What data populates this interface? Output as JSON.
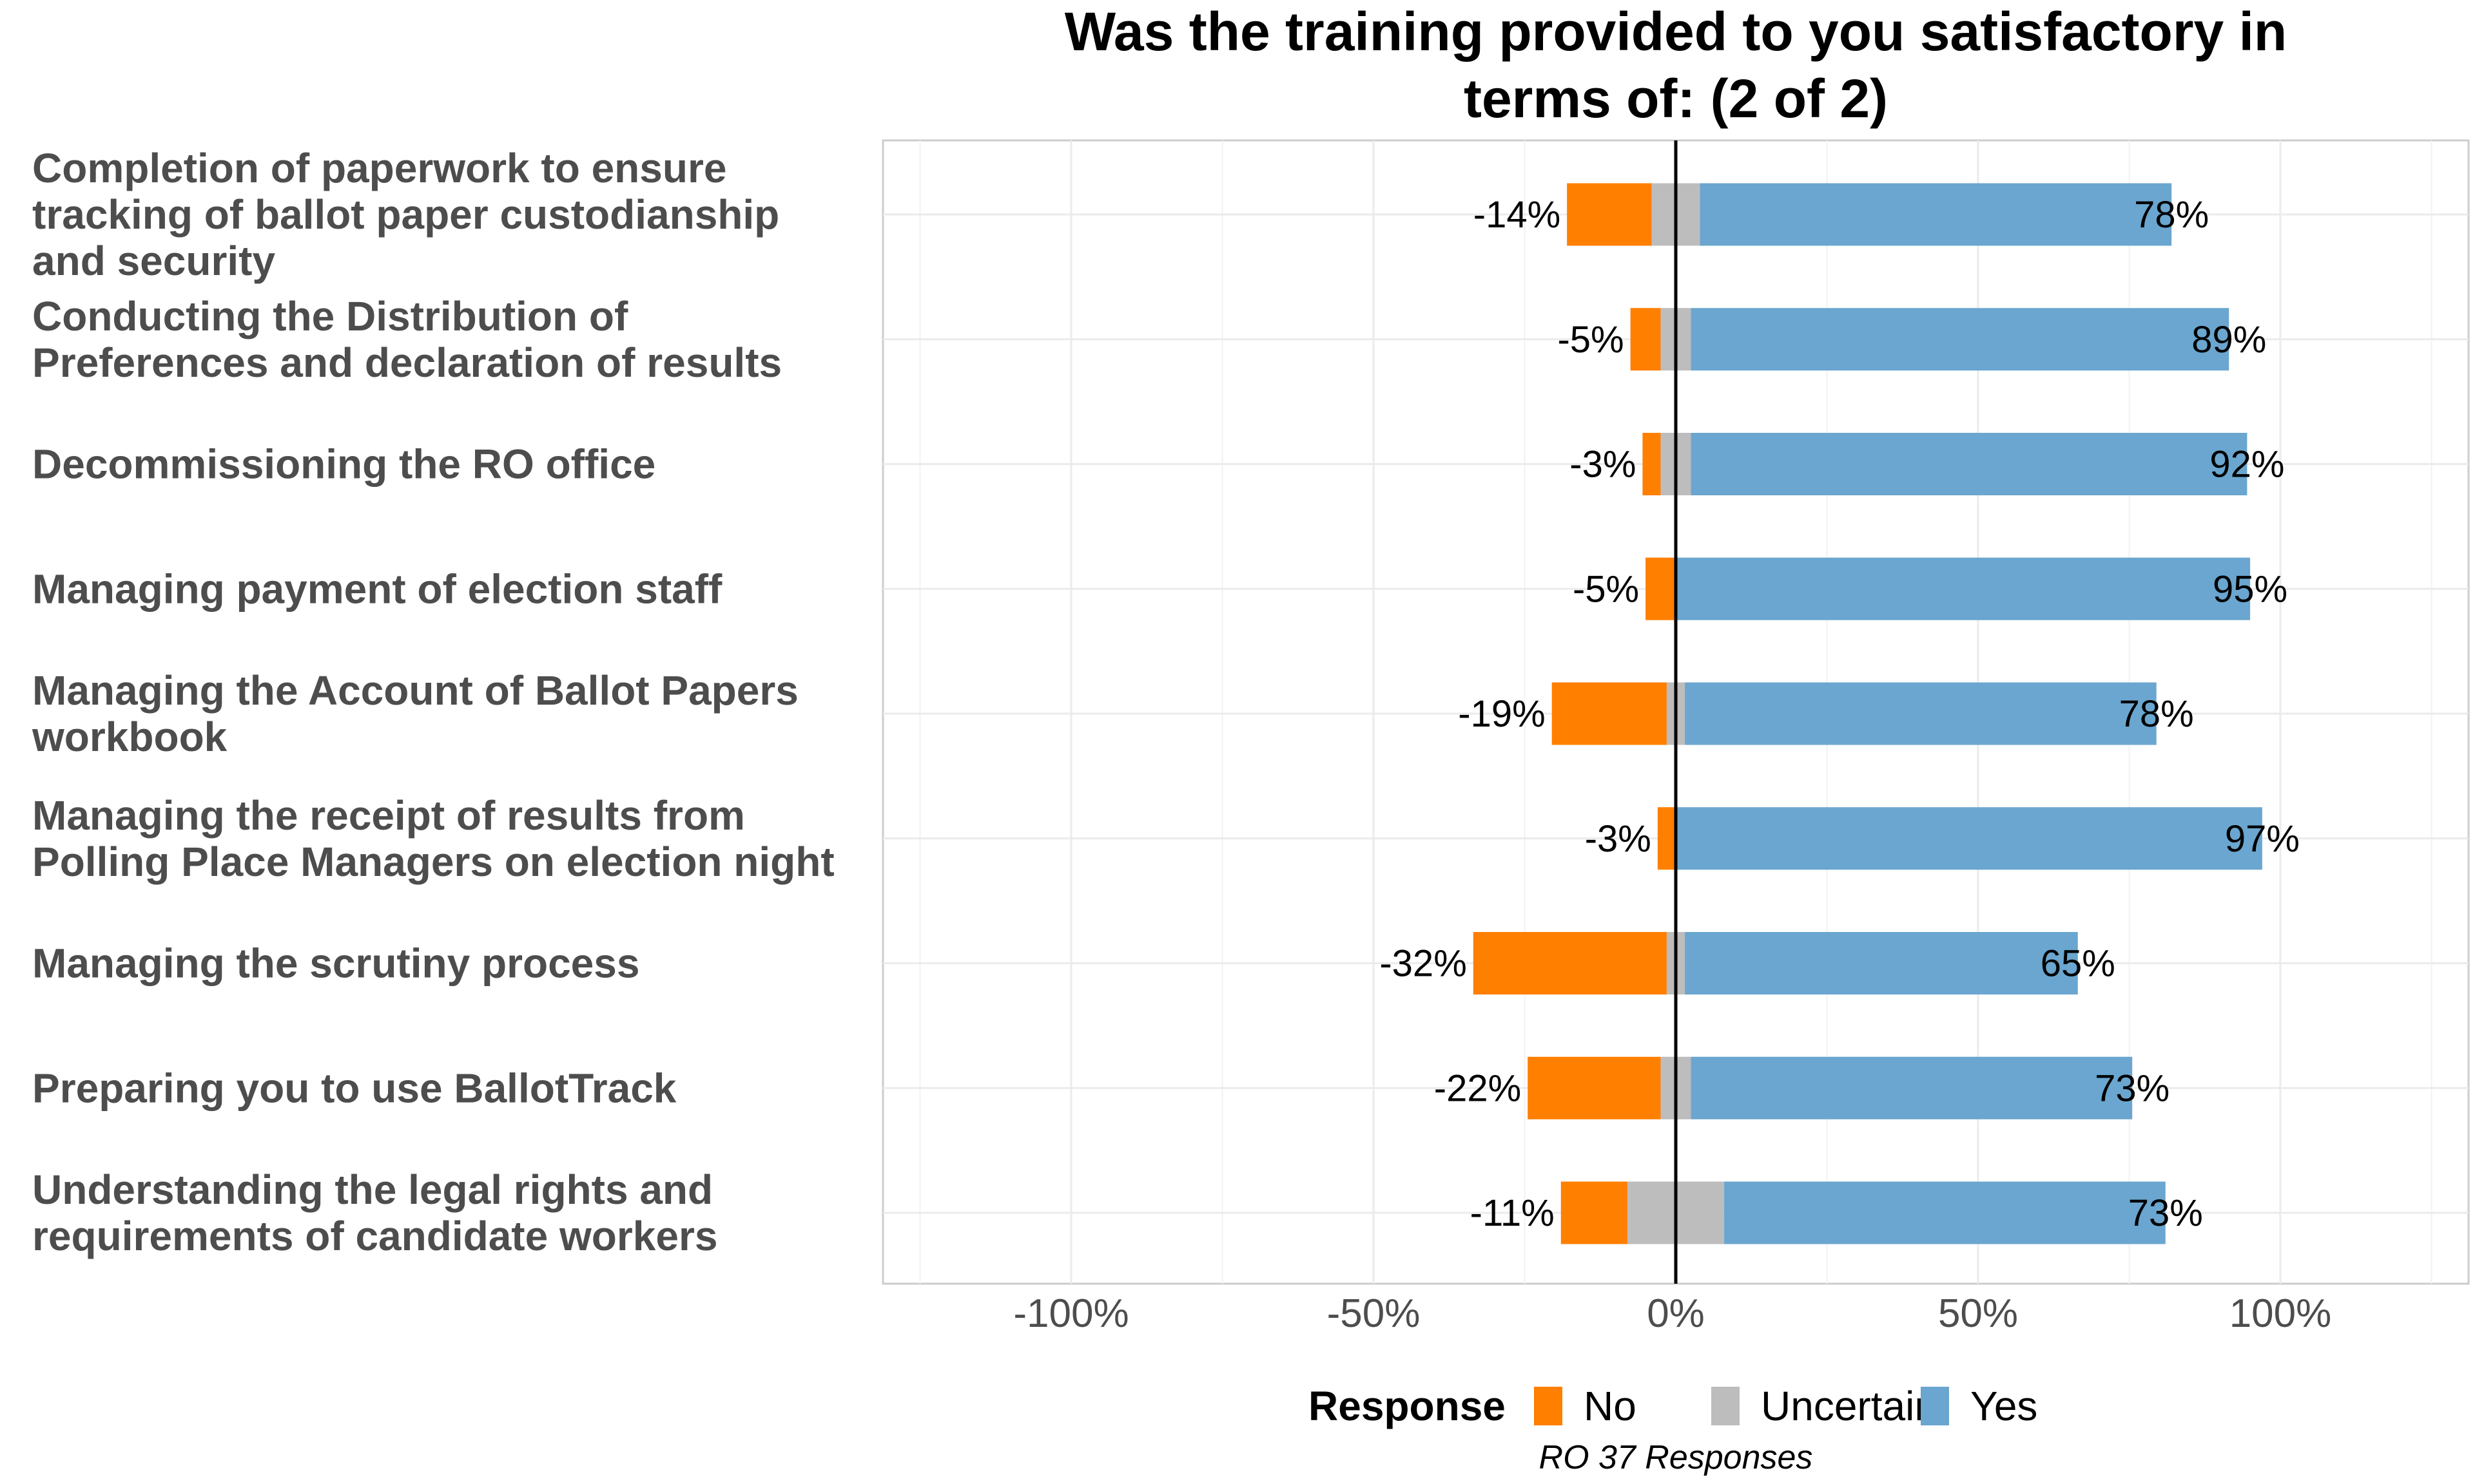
{
  "chart_data": {
    "type": "bar",
    "orientation": "horizontal-diverging",
    "title_lines": [
      "Was the training provided to you satisfactory in",
      "terms of: (2 of 2)"
    ],
    "categories": [
      {
        "lines": [
          "Completion of paperwork to ensure",
          "tracking of ballot paper custodianship",
          "and security"
        ]
      },
      {
        "lines": [
          "Conducting the Distribution of",
          "Preferences and declaration of results"
        ]
      },
      {
        "lines": [
          "Decommissioning the RO office"
        ]
      },
      {
        "lines": [
          "Managing payment of election staff"
        ]
      },
      {
        "lines": [
          "Managing the Account of Ballot Papers",
          "workbook"
        ]
      },
      {
        "lines": [
          "Managing the receipt of results from",
          "Polling Place Managers on election night"
        ]
      },
      {
        "lines": [
          "Managing the scrutiny process"
        ]
      },
      {
        "lines": [
          "Preparing you to use BallotTrack"
        ]
      },
      {
        "lines": [
          "Understanding the legal rights and",
          "requirements of candidate workers"
        ]
      }
    ],
    "series": [
      {
        "name": "No",
        "color": "#ff7f00",
        "values": [
          -14,
          -5,
          -3,
          -5,
          -19,
          -3,
          -32,
          -22,
          -11
        ]
      },
      {
        "name": "Uncertain",
        "color": "#bdbdbd",
        "values": [
          8,
          5,
          5,
          0,
          3,
          0,
          3,
          5,
          16
        ]
      },
      {
        "name": "Yes",
        "color": "#6aa6cf",
        "values": [
          78,
          89,
          92,
          95,
          78,
          97,
          65,
          73,
          73
        ]
      }
    ],
    "no_labels": [
      "-14%",
      "-5%",
      "-3%",
      "-5%",
      "-19%",
      "-3%",
      "-32%",
      "-22%",
      "-11%"
    ],
    "yes_labels": [
      "78%",
      "89%",
      "92%",
      "95%",
      "78%",
      "97%",
      "65%",
      "73%",
      "73%"
    ],
    "xlim": [
      -130,
      130
    ],
    "x_ticks": [
      -100,
      -50,
      0,
      50,
      100
    ],
    "x_tick_labels": [
      "-100%",
      "-50%",
      "0%",
      "50%",
      "100%"
    ],
    "legend": {
      "title": "Response",
      "position": "bottom",
      "items": [
        "No",
        "Uncertain",
        "Yes"
      ]
    },
    "caption": "RO 37 Responses",
    "grid": true
  }
}
